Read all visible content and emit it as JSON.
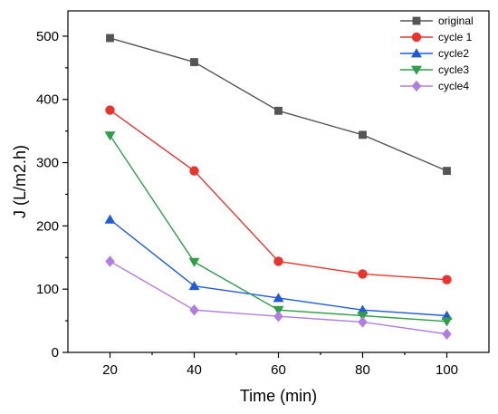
{
  "chart_data": {
    "type": "line",
    "title": "",
    "xlabel": "Time (min)",
    "ylabel": "J (L/m2.h)",
    "xlim": [
      10,
      110
    ],
    "ylim": [
      0,
      540
    ],
    "x_ticks": [
      20,
      40,
      60,
      80,
      100
    ],
    "y_ticks": [
      0,
      100,
      200,
      300,
      400,
      500
    ],
    "grid": false,
    "legend_position": "top-right",
    "x": [
      20,
      40,
      60,
      80,
      100
    ],
    "series": [
      {
        "name": "original",
        "color": "#555555",
        "marker": "square",
        "values": [
          497,
          459,
          382,
          344,
          287
        ]
      },
      {
        "name": "cycle 1",
        "color": "#e8342e",
        "marker": "circle",
        "values": [
          383,
          287,
          144,
          124,
          115
        ]
      },
      {
        "name": "cycle2",
        "color": "#1f5bd8",
        "marker": "triangle-up",
        "values": [
          210,
          105,
          86,
          67,
          58
        ]
      },
      {
        "name": "cycle3",
        "color": "#2e9e48",
        "marker": "triangle-down",
        "values": [
          343,
          143,
          67,
          58,
          49
        ]
      },
      {
        "name": "cycle4",
        "color": "#b07ee0",
        "marker": "diamond",
        "values": [
          144,
          67,
          57,
          48,
          29
        ]
      }
    ]
  }
}
